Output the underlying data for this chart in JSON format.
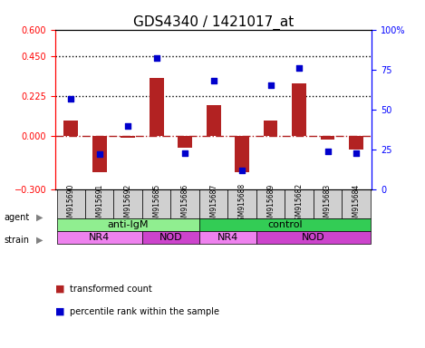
{
  "title": "GDS4340 / 1421017_at",
  "samples": [
    "GSM915690",
    "GSM915691",
    "GSM915692",
    "GSM915685",
    "GSM915686",
    "GSM915687",
    "GSM915688",
    "GSM915689",
    "GSM915682",
    "GSM915683",
    "GSM915684"
  ],
  "transformed_count": [
    0.09,
    -0.2,
    -0.01,
    0.33,
    -0.065,
    0.175,
    -0.2,
    0.09,
    0.3,
    -0.02,
    -0.075
  ],
  "percentile_rank": [
    57,
    22,
    40,
    82,
    23,
    68,
    12,
    65,
    76,
    24,
    23
  ],
  "bar_color": "#b22222",
  "dot_color": "#0000cc",
  "left_ylim": [
    -0.3,
    0.6
  ],
  "right_ylim": [
    0,
    100
  ],
  "left_yticks": [
    -0.3,
    0,
    0.225,
    0.45,
    0.6
  ],
  "right_yticks": [
    0,
    25,
    50,
    75,
    100
  ],
  "hline_values": [
    0.225,
    0.45
  ],
  "zero_line": 0,
  "agent_groups": [
    {
      "label": "anti-IgM",
      "start": 0,
      "end": 5,
      "color": "#90EE90"
    },
    {
      "label": "control",
      "start": 5,
      "end": 11,
      "color": "#33cc55"
    }
  ],
  "strain_groups": [
    {
      "label": "NR4",
      "start": 0,
      "end": 3,
      "color": "#ee82ee"
    },
    {
      "label": "NOD",
      "start": 3,
      "end": 5,
      "color": "#cc44cc"
    },
    {
      "label": "NR4",
      "start": 5,
      "end": 7,
      "color": "#ee82ee"
    },
    {
      "label": "NOD",
      "start": 7,
      "end": 11,
      "color": "#cc44cc"
    }
  ],
  "legend_items": [
    {
      "label": "transformed count",
      "color": "#b22222"
    },
    {
      "label": "percentile rank within the sample",
      "color": "#0000cc"
    }
  ],
  "sample_box_color": "#d0d0d0",
  "background_color": "#ffffff",
  "tick_label_fontsize": 7,
  "title_fontsize": 11,
  "bar_width": 0.5
}
